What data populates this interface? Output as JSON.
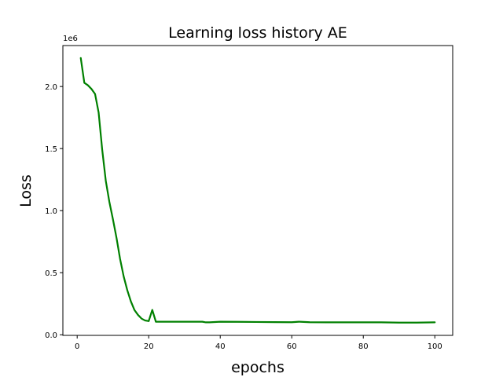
{
  "chart_data": {
    "type": "line",
    "title": "Learning loss history AE",
    "xlabel": "epochs",
    "ylabel": "Loss",
    "y_scale_label": "1e6",
    "xlim": [
      -4.0,
      105.0
    ],
    "ylim": [
      -0.005,
      2.33
    ],
    "x_ticks": [
      0,
      20,
      40,
      60,
      80,
      100
    ],
    "x_tick_labels": [
      "0",
      "20",
      "40",
      "60",
      "80",
      "100"
    ],
    "y_ticks": [
      0.0,
      0.5,
      1.0,
      1.5,
      2.0
    ],
    "y_tick_labels": [
      "0.0",
      "0.5",
      "1.0",
      "1.5",
      "2.0"
    ],
    "grid": false,
    "series": [
      {
        "color": "#008000",
        "x": [
          1,
          2,
          3,
          4,
          5,
          6,
          7,
          8,
          9,
          10,
          11,
          12,
          13,
          14,
          15,
          16,
          17,
          18,
          19,
          20,
          21,
          22,
          25,
          30,
          35,
          36,
          37,
          40,
          45,
          50,
          55,
          60,
          62,
          65,
          70,
          75,
          80,
          85,
          90,
          95,
          100
        ],
        "y": [
          2.23,
          2.03,
          2.01,
          1.98,
          1.94,
          1.79,
          1.49,
          1.24,
          1.07,
          0.93,
          0.78,
          0.61,
          0.47,
          0.36,
          0.27,
          0.2,
          0.16,
          0.13,
          0.115,
          0.11,
          0.2,
          0.105,
          0.105,
          0.105,
          0.105,
          0.1,
          0.1,
          0.105,
          0.104,
          0.103,
          0.102,
          0.101,
          0.105,
          0.101,
          0.1,
          0.1,
          0.1,
          0.1,
          0.098,
          0.098,
          0.1
        ]
      }
    ]
  }
}
